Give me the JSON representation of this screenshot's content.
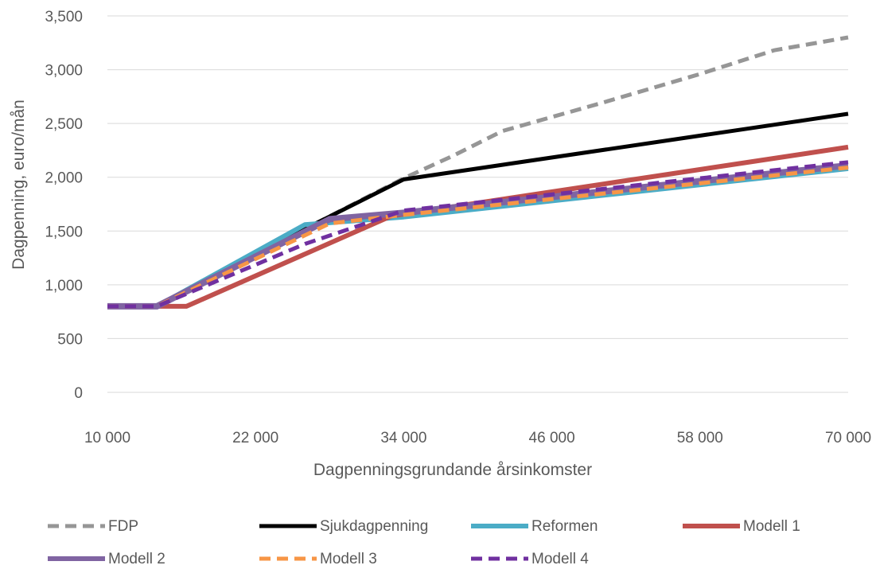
{
  "chart_data": {
    "type": "line",
    "xlabel": "Dagpenningsgrundande årsinkomster",
    "ylabel": "Dagpenning, euro/mån",
    "xlim": [
      10000,
      70000
    ],
    "ylim": [
      0,
      3500
    ],
    "x_ticks": [
      10000,
      22000,
      34000,
      46000,
      58000,
      70000
    ],
    "x_tick_labels": [
      "10 000",
      "22 000",
      "34 000",
      "46 000",
      "58 000",
      "70 000"
    ],
    "y_ticks": [
      0,
      500,
      1000,
      1500,
      2000,
      2500,
      3000,
      3500
    ],
    "y_tick_labels": [
      "0",
      "500",
      "1,000",
      "1,500",
      "2,000",
      "2,500",
      "3,000",
      "3,500"
    ],
    "grid": "horizontal",
    "legend_position": "bottom",
    "series": [
      {
        "name": "FDP",
        "color": "#969696",
        "style": "dashed",
        "width": 5,
        "points": [
          [
            10000,
            800
          ],
          [
            14000,
            800
          ],
          [
            22000,
            1260
          ],
          [
            26000,
            1520
          ],
          [
            34000,
            1990
          ],
          [
            38000,
            2200
          ],
          [
            42000,
            2430
          ],
          [
            50000,
            2690
          ],
          [
            58000,
            2960
          ],
          [
            64000,
            3180
          ],
          [
            70000,
            3300
          ]
        ]
      },
      {
        "name": "Sjukdagpenning",
        "color": "#000000",
        "style": "solid",
        "width": 5,
        "points": [
          [
            10000,
            800
          ],
          [
            14000,
            800
          ],
          [
            22000,
            1260
          ],
          [
            26000,
            1520
          ],
          [
            34000,
            1980
          ],
          [
            70000,
            2590
          ]
        ]
      },
      {
        "name": "Reformen",
        "color": "#4BACC6",
        "style": "solid",
        "width": 6,
        "points": [
          [
            10000,
            800
          ],
          [
            14000,
            800
          ],
          [
            26000,
            1560
          ],
          [
            34000,
            1630
          ],
          [
            70000,
            2080
          ]
        ]
      },
      {
        "name": "Modell 1",
        "color": "#C0504D",
        "style": "solid",
        "width": 6,
        "points": [
          [
            10000,
            800
          ],
          [
            16400,
            800
          ],
          [
            33000,
            1640
          ],
          [
            70000,
            2280
          ]
        ]
      },
      {
        "name": "Modell 2",
        "color": "#8064A2",
        "style": "solid",
        "width": 8,
        "points": [
          [
            10000,
            800
          ],
          [
            14000,
            800
          ],
          [
            28000,
            1610
          ],
          [
            34000,
            1670
          ],
          [
            70000,
            2110
          ]
        ]
      },
      {
        "name": "Modell 3",
        "color": "#F79646",
        "style": "dashed",
        "width": 5,
        "points": [
          [
            10000,
            800
          ],
          [
            14000,
            800
          ],
          [
            28000,
            1570
          ],
          [
            34000,
            1650
          ],
          [
            70000,
            2090
          ]
        ]
      },
      {
        "name": "Modell 4",
        "color": "#7030A0",
        "style": "dashed",
        "width": 5,
        "points": [
          [
            10000,
            800
          ],
          [
            14000,
            800
          ],
          [
            26000,
            1380
          ],
          [
            34000,
            1690
          ],
          [
            70000,
            2140
          ]
        ]
      }
    ]
  }
}
